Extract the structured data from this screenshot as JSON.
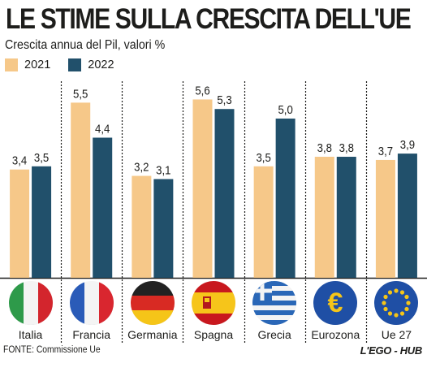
{
  "title": "LE STIME SULLA CRESCITA DELL'UE",
  "subtitle": "Crescita annua del Pil, valori %",
  "source": "FONTE: Commissione Ue",
  "brand": "L'EGO - HUB",
  "colors": {
    "y2021": "#f6c889",
    "y2022": "#21506b"
  },
  "flags": [
    "italy-flag-icon",
    "france-flag-icon",
    "germany-flag-icon",
    "spain-flag-icon",
    "greece-flag-icon",
    "eurozone-flag-icon",
    "eu27-flag-icon"
  ],
  "chart_data": {
    "type": "bar",
    "categories": [
      "Italia",
      "Francia",
      "Germania",
      "Spagna",
      "Grecia",
      "Eurozona",
      "Ue 27"
    ],
    "series": [
      {
        "name": "2021",
        "values": [
          3.4,
          5.5,
          3.2,
          5.6,
          3.5,
          3.8,
          3.7
        ],
        "labels": [
          "3,4",
          "5,5",
          "3,2",
          "5,6",
          "3,5",
          "3,8",
          "3,7"
        ]
      },
      {
        "name": "2022",
        "values": [
          3.5,
          4.4,
          3.1,
          5.3,
          5.0,
          3.8,
          3.9
        ],
        "labels": [
          "3,5",
          "4,4",
          "3,1",
          "5,3",
          "5,0",
          "3,8",
          "3,9"
        ]
      }
    ],
    "ylim": [
      0,
      6.3
    ],
    "grid": false,
    "legend": "top-left"
  }
}
